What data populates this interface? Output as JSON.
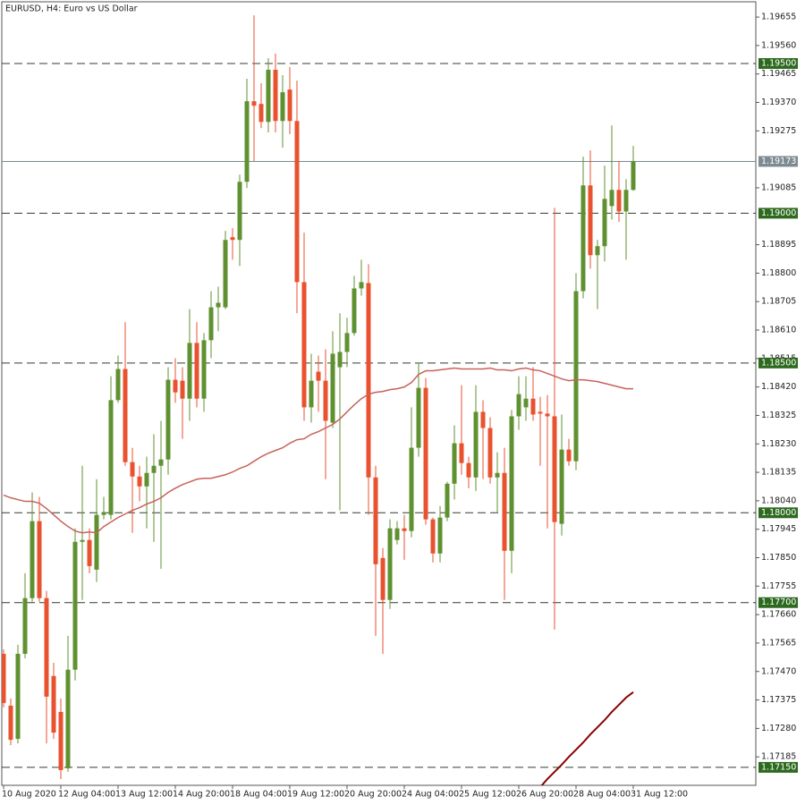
{
  "chart_data": {
    "type": "candlestick",
    "title": "EURUSD, H4:  Euro vs US Dollar",
    "ylim": [
      1.1709,
      1.19706
    ],
    "yticks": [
      1.19655,
      {
        "value": 1.1956,
        "label": "1.19560"
      },
      1.19465,
      {
        "value": 1.1937,
        "label": "1.19370"
      },
      1.19275,
      1.19085,
      1.18895,
      {
        "value": 1.188,
        "label": "1.18800"
      },
      1.18705,
      {
        "value": 1.1861,
        "label": "1.18610"
      },
      1.18515,
      {
        "value": 1.1842,
        "label": "1.18420"
      },
      1.18325,
      {
        "value": 1.1823,
        "label": "1.18230"
      },
      1.18135,
      {
        "value": 1.1804,
        "label": "1.18040"
      },
      1.17945,
      {
        "value": 1.1785,
        "label": "1.17850"
      },
      1.17755,
      {
        "value": 1.1766,
        "label": "1.17660"
      },
      1.17565,
      {
        "value": 1.1747,
        "label": "1.17470"
      },
      1.17375,
      {
        "value": 1.1728,
        "label": "1.17280"
      },
      1.17185
    ],
    "xticks": [
      {
        "value": 0,
        "label": "10 Aug 2020"
      },
      {
        "value": 8,
        "label": "12 Aug 04:00"
      },
      {
        "value": 16,
        "label": "13 Aug 12:00"
      },
      {
        "value": 24,
        "label": "14 Aug 20:00"
      },
      {
        "value": 32,
        "label": "18 Aug 04:00"
      },
      {
        "value": 40,
        "label": "19 Aug 12:00"
      },
      {
        "value": 48,
        "label": "20 Aug 20:00"
      },
      {
        "value": 56,
        "label": "24 Aug 04:00"
      },
      {
        "value": 64,
        "label": "25 Aug 12:00"
      },
      {
        "value": 72,
        "label": "26 Aug 20:00"
      },
      {
        "value": 80,
        "label": "28 Aug 04:00"
      },
      {
        "value": 88,
        "label": "31 Aug 12:00"
      }
    ],
    "up_color": "#5f9130",
    "down_color": "#e8522f",
    "open": [
      1.17529,
      1.17356,
      1.17245,
      1.17529,
      1.17715,
      1.17972,
      1.17715,
      1.17455,
      1.17335,
      1.17147,
      1.17476,
      1.17903,
      1.17909,
      1.1781,
      1.17993,
      1.17993,
      1.18376,
      1.1848,
      1.18169,
      1.18121,
      1.18088,
      1.18133,
      1.18157,
      1.18178,
      1.18444,
      1.18441,
      1.18381,
      1.18567,
      1.18381,
      1.18576,
      1.18686,
      1.18686,
      1.1892,
      1.18911,
      1.19105,
      1.19374,
      1.19365,
      1.19305,
      1.19479,
      1.19308,
      1.19413,
      1.19308,
      1.1877,
      1.18352,
      1.18471,
      1.18441,
      1.18301,
      1.18486,
      1.18537,
      1.186,
      1.18749,
      1.18767,
      1.18118,
      1.17849,
      1.17709,
      1.17909,
      1.17948,
      1.17939,
      1.18217,
      1.18417,
      1.17978,
      1.17864,
      1.17984,
      1.18097,
      1.18232,
      1.18166,
      1.18118,
      1.18337,
      1.18283,
      1.18118,
      1.18133,
      1.17873,
      1.18322,
      1.18352,
      1.18381,
      1.18337,
      1.18331,
      1.18322,
      1.17963,
      1.18211,
      1.18172,
      1.1874,
      1.19093,
      1.1886,
      1.1889,
      1.19024,
      1.19078,
      1.19006,
      1.19078
    ],
    "high": [
      1.17544,
      1.1738,
      1.17559,
      1.17798,
      1.18068,
      1.18053,
      1.17739,
      1.17499,
      1.1738,
      1.17589,
      1.17948,
      1.18157,
      1.17948,
      1.18112,
      1.18053,
      1.18456,
      1.18525,
      1.18636,
      1.18217,
      1.18157,
      1.18187,
      1.18262,
      1.18307,
      1.18486,
      1.18516,
      1.18486,
      1.1868,
      1.18636,
      1.186,
      1.1874,
      1.18755,
      1.18941,
      1.1895,
      1.19129,
      1.19449,
      1.19661,
      1.19434,
      1.19518,
      1.19533,
      1.19461,
      1.19488,
      1.19443,
      1.18935,
      1.18531,
      1.18525,
      1.18546,
      1.18606,
      1.18666,
      1.18651,
      1.18791,
      1.18845,
      1.1883,
      1.18157,
      1.17882,
      1.17978,
      1.17972,
      1.17993,
      1.18352,
      1.18501,
      1.1845,
      1.17984,
      1.18023,
      1.18103,
      1.18292,
      1.18426,
      1.18187,
      1.18426,
      1.18376,
      1.18319,
      1.18202,
      1.18217,
      1.18343,
      1.18456,
      1.18456,
      1.18486,
      1.18387,
      1.18393,
      1.19018,
      1.18328,
      1.18247,
      1.188,
      1.19189,
      1.1921,
      1.18911,
      1.19159,
      1.19293,
      1.19174,
      1.19114,
      1.19225
    ],
    "low": [
      1.1735,
      1.17224,
      1.1723,
      1.17514,
      1.17703,
      1.17703,
      1.1723,
      1.17245,
      1.17111,
      1.17135,
      1.1744,
      1.17709,
      1.17798,
      1.17769,
      1.17978,
      1.17978,
      1.18367,
      1.18157,
      1.17933,
      1.18038,
      1.17948,
      1.17903,
      1.17813,
      1.18127,
      1.18367,
      1.18247,
      1.18307,
      1.18352,
      1.18337,
      1.18516,
      1.18606,
      1.1868,
      1.18845,
      1.18824,
      1.19084,
      1.19174,
      1.19284,
      1.1927,
      1.1927,
      1.19219,
      1.19264,
      1.18666,
      1.18307,
      1.18301,
      1.18337,
      1.18112,
      1.18283,
      1.18008,
      1.18486,
      1.18591,
      1.18725,
      1.17993,
      1.17589,
      1.17529,
      1.17679,
      1.17894,
      1.17843,
      1.17918,
      1.18187,
      1.1796,
      1.17834,
      1.17834,
      1.17972,
      1.18044,
      1.18127,
      1.18082,
      1.18073,
      1.18112,
      1.18097,
      1.18002,
      1.17709,
      1.17798,
      1.18277,
      1.18307,
      1.18307,
      1.18157,
      1.17948,
      1.1761,
      1.17924,
      1.18157,
      1.18142,
      1.18716,
      1.18815,
      1.1868,
      1.18839,
      1.18979,
      1.18971,
      1.18845,
      1.19075
    ],
    "close": [
      1.17365,
      1.17242,
      1.17529,
      1.17715,
      1.17972,
      1.17715,
      1.17386,
      1.17266,
      1.17141,
      1.17476,
      1.17903,
      1.17909,
      1.17822,
      1.17993,
      1.18002,
      1.18376,
      1.1848,
      1.18169,
      1.18121,
      1.18088,
      1.18133,
      1.18157,
      1.18178,
      1.18444,
      1.18402,
      1.18381,
      1.18567,
      1.18381,
      1.18576,
      1.18686,
      1.18701,
      1.18911,
      1.18911,
      1.19105,
      1.19374,
      1.19359,
      1.19305,
      1.19479,
      1.19308,
      1.19404,
      1.19308,
      1.1877,
      1.18352,
      1.18441,
      1.18441,
      1.18307,
      1.18531,
      1.18537,
      1.186,
      1.18749,
      1.1877,
      1.18118,
      1.17828,
      1.17709,
      1.17948,
      1.17948,
      1.17939,
      1.18217,
      1.18417,
      1.17978,
      1.17864,
      1.17984,
      1.18097,
      1.18232,
      1.18166,
      1.18118,
      1.18337,
      1.18283,
      1.18118,
      1.18133,
      1.17873,
      1.18322,
      1.18396,
      1.18381,
      1.18328,
      1.18331,
      1.18322,
      1.17969,
      1.18211,
      1.18172,
      1.1874,
      1.19093,
      1.1886,
      1.1889,
      1.19048,
      1.19078,
      1.19006,
      1.19078,
      1.19173
    ],
    "lines": [
      {
        "color": "#c8625a",
        "values": [
          1.18059,
          1.1805,
          1.18044,
          1.18038,
          1.18038,
          1.18032,
          1.18014,
          1.17993,
          1.17972,
          1.17954,
          1.17939,
          1.17933,
          1.17936,
          1.17933,
          1.17954,
          1.17969,
          1.17984,
          1.17996,
          1.18008,
          1.18017,
          1.18029,
          1.18038,
          1.1805,
          1.18068,
          1.18082,
          1.18094,
          1.18103,
          1.18112,
          1.18115,
          1.18115,
          1.18121,
          1.18127,
          1.18136,
          1.18148,
          1.18157,
          1.18172,
          1.18187,
          1.18199,
          1.18208,
          1.18217,
          1.18232,
          1.18244,
          1.18247,
          1.18262,
          1.18271,
          1.18283,
          1.18295,
          1.18313,
          1.18337,
          1.1836,
          1.18381,
          1.18396,
          1.18402,
          1.18405,
          1.18411,
          1.18414,
          1.1842,
          1.18435,
          1.18462,
          1.18474,
          1.18474,
          1.18477,
          1.1848,
          1.18483,
          1.1848,
          1.1848,
          1.1848,
          1.1848,
          1.18483,
          1.18477,
          1.18477,
          1.18474,
          1.1848,
          1.18483,
          1.18477,
          1.18474,
          1.18465,
          1.18456,
          1.18447,
          1.18441,
          1.18444,
          1.18444,
          1.18441,
          1.18438,
          1.18432,
          1.18426,
          1.1842,
          1.18414,
          1.18414
        ]
      },
      {
        "color": "#8b0000",
        "values": [
          null,
          null,
          null,
          null,
          null,
          null,
          null,
          null,
          null,
          null,
          null,
          null,
          null,
          null,
          null,
          null,
          null,
          null,
          null,
          null,
          null,
          null,
          null,
          null,
          null,
          null,
          null,
          null,
          null,
          null,
          null,
          null,
          null,
          null,
          null,
          null,
          null,
          null,
          null,
          null,
          null,
          null,
          null,
          null,
          null,
          null,
          null,
          null,
          null,
          null,
          null,
          null,
          null,
          null,
          null,
          null,
          null,
          null,
          null,
          null,
          null,
          null,
          null,
          null,
          null,
          null,
          null,
          null,
          null,
          null,
          null,
          null,
          null,
          null,
          null,
          1.17084,
          1.17111,
          1.17135,
          1.17159,
          1.17185,
          1.17209,
          1.17233,
          1.1726,
          1.17284,
          1.17308,
          1.17335,
          1.17359,
          1.17383,
          1.17401
        ]
      }
    ],
    "levels": {
      "color": "#2d6a1f",
      "items": [
        {
          "value": 1.195,
          "label": "1.19500"
        },
        {
          "value": 1.19,
          "label": "1.19000"
        },
        {
          "value": 1.185,
          "label": "1.18500"
        },
        {
          "value": 1.18,
          "label": "1.18000"
        },
        {
          "value": 1.177,
          "label": "1.17700"
        },
        {
          "value": 1.1715,
          "label": "1.17150"
        }
      ]
    },
    "current_price": {
      "value": 1.19173,
      "label": "1.19173",
      "color": "#7d8b92"
    }
  }
}
